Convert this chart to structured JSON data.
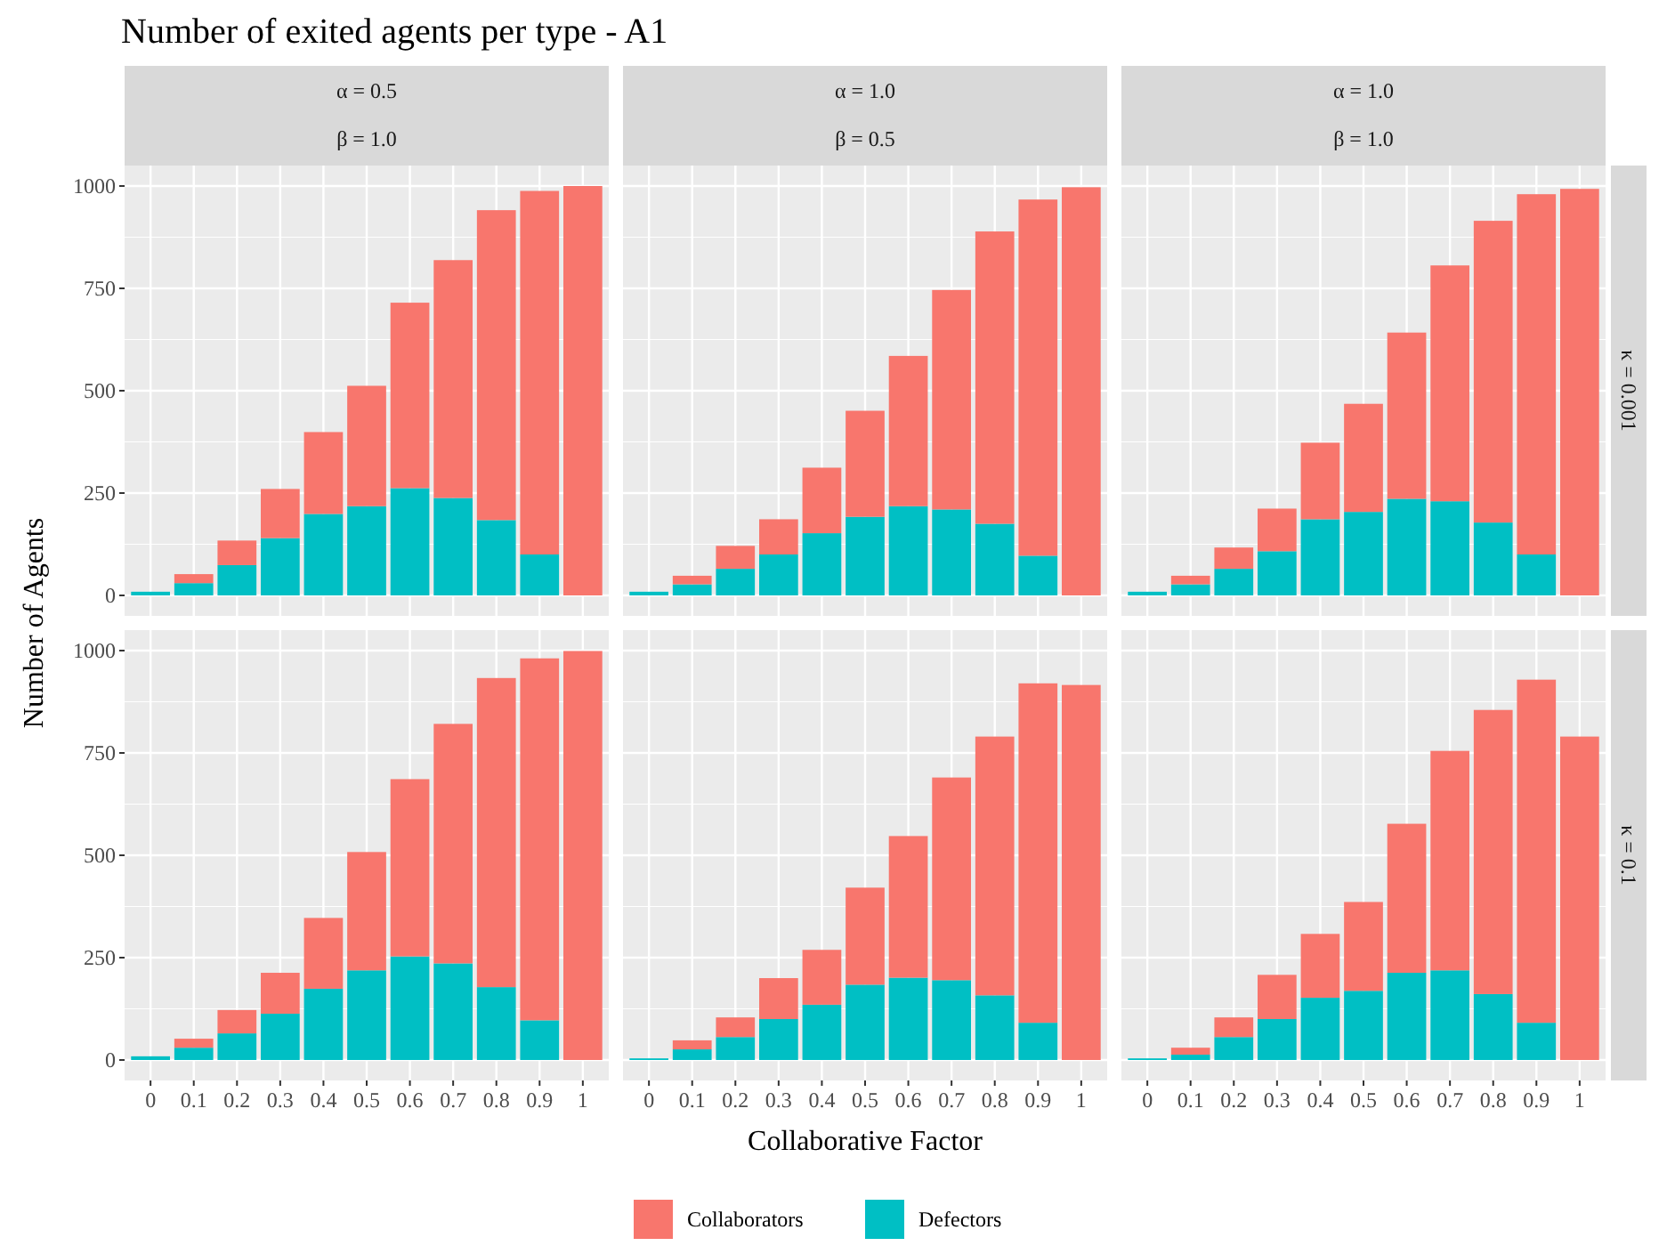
{
  "chart_data": [
    {
      "type": "bar",
      "title": "α = 0.5",
      "subtitle": "β = 1.0",
      "annotations": [
        "Number of exited agents per type - A1"
      ],
      "ylabel": "Number of Agents",
      "stacked": true,
      "legend": "bottom",
      "grid": true,
      "tick_labels": "y",
      "categories": [
        "0",
        "0.1",
        "0.2",
        "0.3",
        "0.4",
        "0.5",
        "0.6",
        "0.7",
        "0.8",
        "0.9",
        "1"
      ],
      "ylim": [
        -50,
        1050
      ],
      "yticks": [
        0,
        250,
        500,
        750,
        1000
      ],
      "series": [
        {
          "name": "Defectors",
          "color": "#00bfc4",
          "values": [
            9,
            30,
            74,
            140,
            199,
            218,
            262,
            238,
            184,
            100,
            0
          ]
        },
        {
          "name": "Collaborators",
          "color": "#f8766d",
          "values": [
            0,
            22,
            60,
            120,
            200,
            294,
            453,
            581,
            757,
            888,
            1000
          ]
        }
      ]
    },
    {
      "type": "bar",
      "title": "α = 1.0",
      "subtitle": "β = 0.5",
      "stacked": true,
      "grid": true,
      "tick_labels": false,
      "categories": [
        "0",
        "0.1",
        "0.2",
        "0.3",
        "0.4",
        "0.5",
        "0.6",
        "0.7",
        "0.8",
        "0.9",
        "1"
      ],
      "ylim": [
        -50,
        1050
      ],
      "yticks": [
        0,
        250,
        500,
        750,
        1000
      ],
      "series": [
        {
          "color": "#00bfc4",
          "values": [
            9,
            27,
            65,
            100,
            152,
            192,
            218,
            210,
            175,
            97,
            0
          ]
        },
        {
          "color": "#f8766d",
          "values": [
            0,
            21,
            56,
            86,
            160,
            259,
            367,
            536,
            714,
            870,
            997
          ]
        }
      ]
    },
    {
      "type": "bar",
      "title": "α = 1.0",
      "subtitle": "β = 1.0",
      "annotations": [
        "κ = 0.001"
      ],
      "stacked": true,
      "grid": true,
      "tick_labels": false,
      "categories": [
        "0",
        "0.1",
        "0.2",
        "0.3",
        "0.4",
        "0.5",
        "0.6",
        "0.7",
        "0.8",
        "0.9",
        "1"
      ],
      "ylim": [
        -50,
        1050
      ],
      "yticks": [
        0,
        250,
        500,
        750,
        1000
      ],
      "series": [
        {
          "color": "#00bfc4",
          "values": [
            9,
            27,
            65,
            108,
            186,
            204,
            236,
            230,
            178,
            100,
            0
          ]
        },
        {
          "color": "#f8766d",
          "values": [
            0,
            21,
            52,
            104,
            187,
            264,
            406,
            576,
            737,
            880,
            993
          ]
        }
      ]
    },
    {
      "type": "bar",
      "stacked": true,
      "grid": true,
      "categories": [
        "0",
        "0.1",
        "0.2",
        "0.3",
        "0.4",
        "0.5",
        "0.6",
        "0.7",
        "0.8",
        "0.9",
        "1"
      ],
      "ylim": [
        -50,
        1050
      ],
      "yticks": [
        0,
        250,
        500,
        750,
        1000
      ],
      "series": [
        {
          "color": "#00bfc4",
          "values": [
            9,
            30,
            65,
            113,
            174,
            219,
            253,
            236,
            178,
            97,
            0
          ]
        },
        {
          "color": "#f8766d",
          "values": [
            0,
            22,
            57,
            100,
            173,
            289,
            433,
            585,
            755,
            884,
            999
          ]
        }
      ]
    },
    {
      "type": "bar",
      "xlabel": "Collaborative Factor",
      "stacked": true,
      "grid": true,
      "tick_labels": "x",
      "categories": [
        "0",
        "0.1",
        "0.2",
        "0.3",
        "0.4",
        "0.5",
        "0.6",
        "0.7",
        "0.8",
        "0.9",
        "1"
      ],
      "ylim": [
        -50,
        1050
      ],
      "yticks": [
        0,
        250,
        500,
        750,
        1000
      ],
      "series": [
        {
          "color": "#00bfc4",
          "values": [
            4,
            26,
            56,
            100,
            135,
            184,
            201,
            195,
            158,
            91,
            0
          ]
        },
        {
          "color": "#f8766d",
          "values": [
            0,
            22,
            48,
            100,
            134,
            237,
            346,
            495,
            632,
            829,
            916
          ]
        }
      ]
    },
    {
      "type": "bar",
      "annotations": [
        "κ = 0.1"
      ],
      "stacked": true,
      "grid": true,
      "tick_labels": "x",
      "categories": [
        "0",
        "0.1",
        "0.2",
        "0.3",
        "0.4",
        "0.5",
        "0.6",
        "0.7",
        "0.8",
        "0.9",
        "1"
      ],
      "ylim": [
        -50,
        1050
      ],
      "yticks": [
        0,
        250,
        500,
        750,
        1000
      ],
      "series": [
        {
          "color": "#00bfc4",
          "values": [
            4,
            13,
            56,
            100,
            152,
            169,
            213,
            219,
            161,
            91,
            0
          ]
        },
        {
          "color": "#f8766d",
          "values": [
            0,
            17,
            48,
            108,
            156,
            217,
            364,
            536,
            694,
            838,
            790
          ]
        }
      ]
    }
  ]
}
